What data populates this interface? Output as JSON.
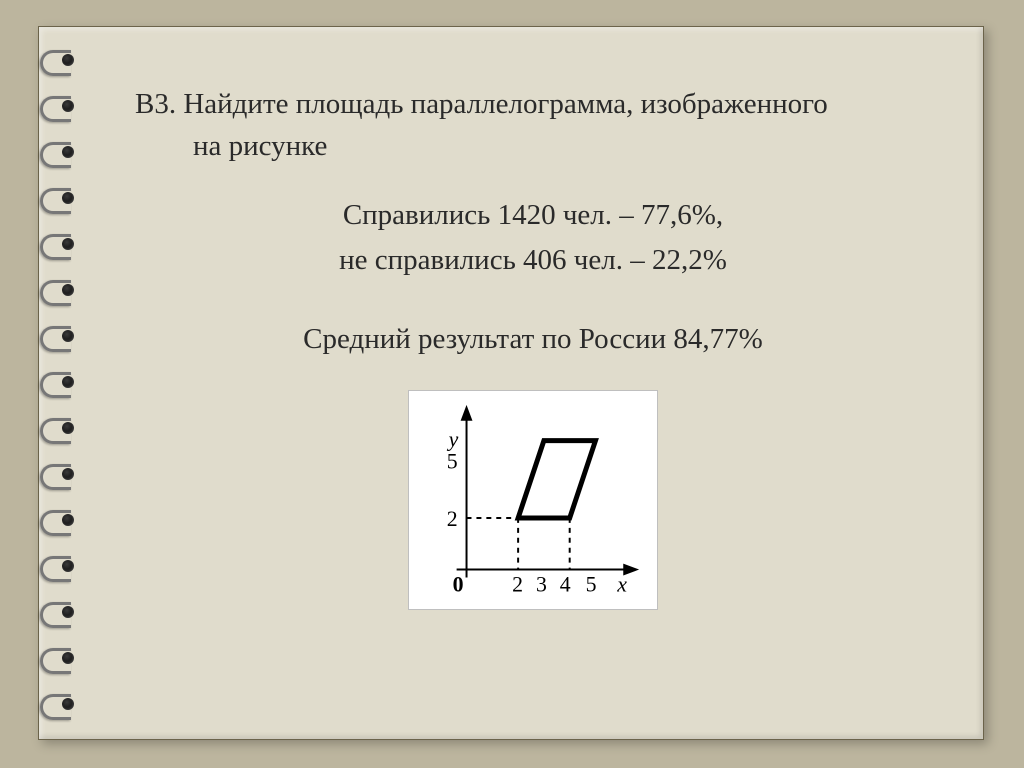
{
  "problem": {
    "label": "В3.",
    "line1": "В3. Найдите площадь параллелограмма, изображенного",
    "line2": "на рисунке"
  },
  "stats": {
    "passed": "Справились 1420 чел. – 77,6%,",
    "failed": "не справились 406 чел. – 22,2%",
    "average": "Средний результат по России 84,77%"
  },
  "figure": {
    "type": "parallelogram-on-axes",
    "axes": {
      "y_label": "y",
      "x_label": "x",
      "y_ticks": [
        "5",
        "2"
      ],
      "x_ticks": [
        "0",
        "2",
        "3",
        "4",
        "5"
      ]
    },
    "shape_points": [
      [
        2,
        2
      ],
      [
        4,
        2
      ],
      [
        5,
        5
      ],
      [
        3,
        5
      ]
    ],
    "colors": {
      "stroke": "#000000",
      "bg": "#ffffff",
      "dash": "#000000"
    },
    "line_width_main": 4,
    "line_width_axis": 2,
    "font_family": "Times New Roman",
    "font_size_axis": 22,
    "font_style": "italic"
  },
  "style": {
    "slide_bg": "#e0dccc",
    "page_bg": "#bcb59e",
    "text_color": "#2a2a2a"
  },
  "spiral_rings": 15
}
